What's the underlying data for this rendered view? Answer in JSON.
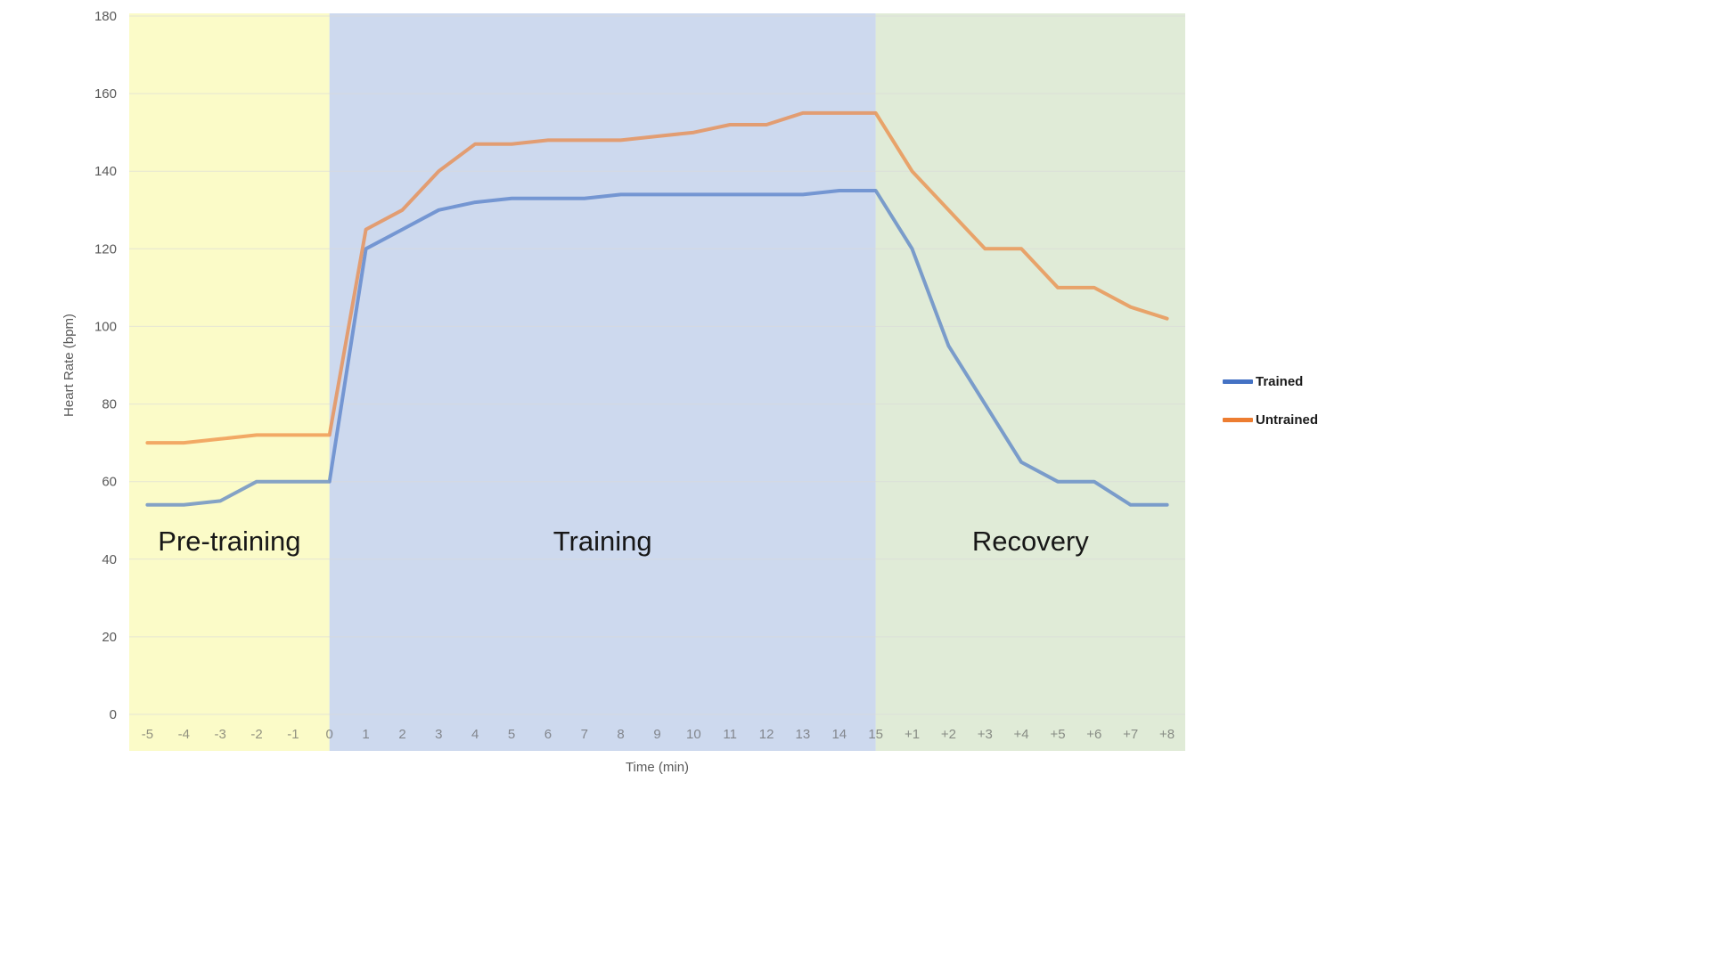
{
  "chart_data": {
    "type": "line",
    "x_label": "Time (min)",
    "y_label": "Heart Rate (bpm)",
    "y_min": 0,
    "y_max": 180,
    "y_step": 20,
    "grid": true,
    "gridline_color": "#D9D9D9",
    "axis_text_color": "#595959",
    "categories": [
      "-5",
      "-4",
      "-3",
      "-2",
      "-1",
      "0",
      "1",
      "2",
      "3",
      "4",
      "5",
      "6",
      "7",
      "8",
      "9",
      "10",
      "11",
      "12",
      "13",
      "14",
      "15",
      "+1",
      "+2",
      "+3",
      "+4",
      "+5",
      "+6",
      "+7",
      "+8"
    ],
    "series": [
      {
        "name": "Trained",
        "color": "#4472C4",
        "values": [
          54,
          54,
          55,
          60,
          60,
          60,
          120,
          125,
          130,
          132,
          133,
          133,
          133,
          134,
          134,
          134,
          134,
          134,
          134,
          135,
          135,
          120,
          95,
          80,
          65,
          60,
          60,
          54,
          54
        ]
      },
      {
        "name": "Untrained",
        "color": "#ED7D31",
        "values": [
          70,
          70,
          71,
          72,
          72,
          72,
          125,
          130,
          140,
          147,
          147,
          148,
          148,
          148,
          149,
          150,
          152,
          152,
          155,
          155,
          155,
          140,
          130,
          120,
          120,
          110,
          110,
          105,
          102
        ]
      }
    ],
    "phases": [
      {
        "label": "Pre-training",
        "start_category": "-5",
        "end_category": "0",
        "color": "#FBFBC8"
      },
      {
        "label": "Training",
        "start_category": "0",
        "end_category": "15",
        "color": "#CDD9EE"
      },
      {
        "label": "Recovery",
        "start_category": "15",
        "end_category": "+8",
        "color": "#E0EBD7"
      }
    ],
    "legend": {
      "position": "right",
      "entries": [
        {
          "label": "Trained",
          "color": "#4472C4"
        },
        {
          "label": "Untrained",
          "color": "#ED7D31"
        }
      ]
    }
  }
}
